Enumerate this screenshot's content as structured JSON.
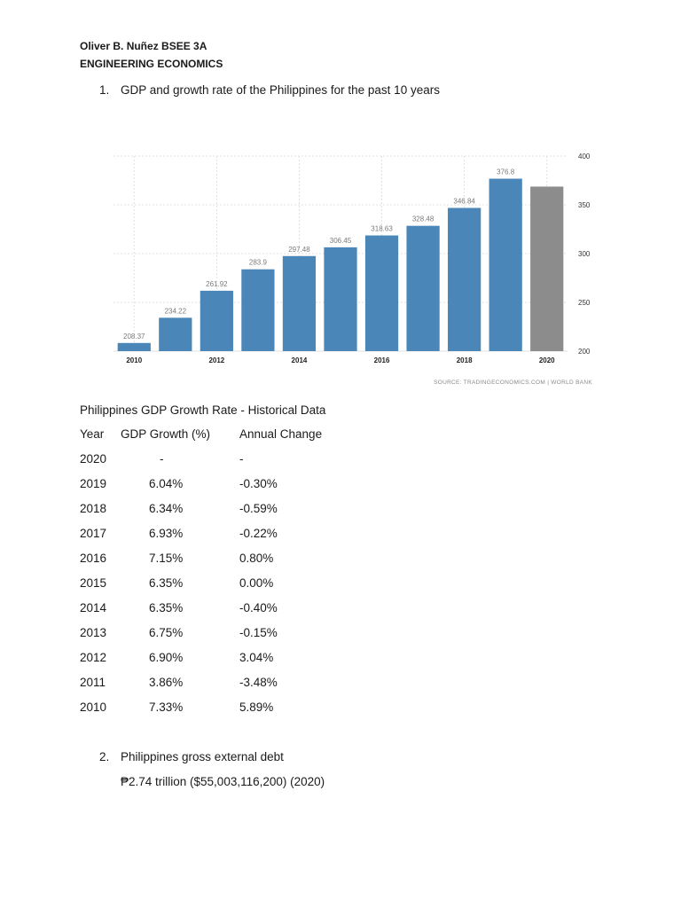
{
  "header": {
    "author": "Oliver B. Nuñez BSEE 3A",
    "course": "ENGINEERING ECONOMICS"
  },
  "item1": {
    "number": "1.",
    "text": "GDP and growth rate of the Philippines for the past 10 years"
  },
  "chart_data": {
    "type": "bar",
    "categories": [
      "2010",
      "2011",
      "2012",
      "2013",
      "2014",
      "2015",
      "2016",
      "2017",
      "2018",
      "2019",
      "2020"
    ],
    "values": [
      208.37,
      234.22,
      261.92,
      283.9,
      297.48,
      306.45,
      318.63,
      328.48,
      346.84,
      376.8,
      368.7
    ],
    "data_labels": [
      "208.37",
      "234.22",
      "261.92",
      "283.9",
      "297.48",
      "306.45",
      "318.63",
      "328.48",
      "346.84",
      "376.8",
      ""
    ],
    "x_tick_labels": [
      "2010",
      "",
      "2012",
      "",
      "2014",
      "",
      "2016",
      "",
      "2018",
      "",
      "2020"
    ],
    "y_ticks": [
      200,
      250,
      300,
      350,
      400
    ],
    "ylim": [
      200,
      400
    ],
    "y_axis_side": "right",
    "grid": true,
    "colors": {
      "bar": "#4a86b8",
      "forecast_bar": "#8c8c8c",
      "grid": "#d9d9d9"
    },
    "forecast_index": 10,
    "source": "SOURCE: TRADINGECONOMICS.COM | WORLD BANK"
  },
  "table": {
    "title": "Philippines GDP Growth Rate - Historical Data",
    "headers": [
      "Year",
      "GDP Growth (%)",
      "Annual Change"
    ],
    "rows": [
      [
        "2020",
        "-",
        "-"
      ],
      [
        "2019",
        "6.04%",
        "-0.30%"
      ],
      [
        "2018",
        "6.34%",
        "-0.59%"
      ],
      [
        "2017",
        "6.93%",
        "-0.22%"
      ],
      [
        "2016",
        "7.15%",
        "0.80%"
      ],
      [
        "2015",
        "6.35%",
        "0.00%"
      ],
      [
        "2014",
        "6.35%",
        "-0.40%"
      ],
      [
        "2013",
        "6.75%",
        "-0.15%"
      ],
      [
        "2012",
        "6.90%",
        "3.04%"
      ],
      [
        "2011",
        "3.86%",
        "-3.48%"
      ],
      [
        "2010",
        "7.33%",
        "5.89%"
      ]
    ]
  },
  "item2": {
    "number": "2.",
    "text": "Philippines gross external debt",
    "detail": "₱2.74 trillion ($55,003,116,200) (2020)"
  }
}
